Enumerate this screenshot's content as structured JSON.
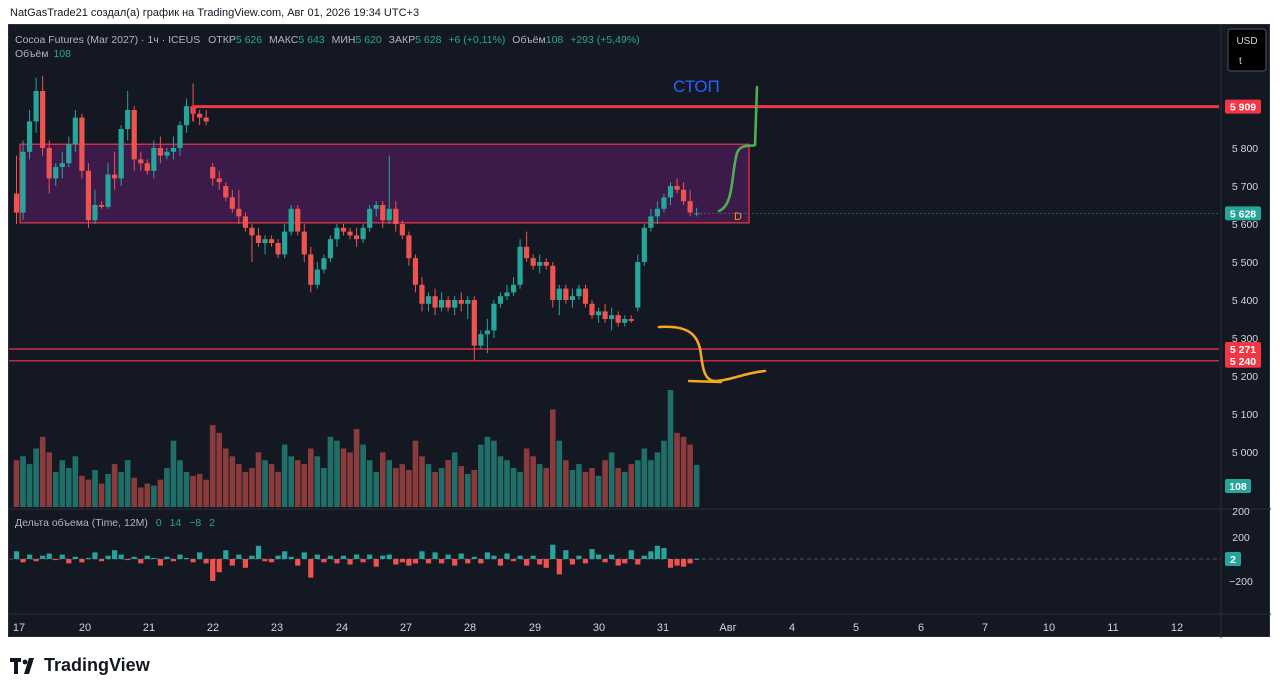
{
  "header": {
    "caption": "NatGasTrade21 создал(а) график на TradingView.com, Авг 01, 2026 19:34 UTC+3"
  },
  "legend": {
    "symbol": "Cocoa Futures (Mar 2027) · 1ч · ICEUS",
    "open_label": "ОТКР",
    "open_value": "5 626",
    "high_label": "МАКС",
    "high_value": "5 643",
    "low_label": "МИН",
    "low_value": "5 620",
    "close_label": "ЗАКР",
    "close_value": "5 628",
    "change": "+6 (+0,11%)",
    "vol_label": "Объём",
    "vol_value": "108",
    "vol_change": "+293 (+5,49%)",
    "vol_line_label": "Объём",
    "vol_line_value": "108"
  },
  "currency": {
    "label": "USD",
    "sub": "t"
  },
  "annotations": {
    "stop_text": "СТОП",
    "marker": "D"
  },
  "delta_pane": {
    "title": "Дельта объема (Time, 12M)",
    "v1": "0",
    "v2": "14",
    "v3": "−8",
    "v4": "2"
  },
  "brand": {
    "name": "TradingView"
  },
  "colors": {
    "up": "#26a69a",
    "down": "#ef5350",
    "bg": "#141823",
    "zone_fill": "#5c1f6b",
    "line_red": "#f23645"
  },
  "chart_data": {
    "type": "candlestick",
    "y_ticks": [
      5100,
      5200,
      5300,
      5400,
      5500,
      5600,
      5700,
      5800
    ],
    "y_tick_labels": [
      "5 100",
      "5 200",
      "5 300",
      "5 400",
      "5 500",
      "5 600",
      "5 700",
      "5 800"
    ],
    "volume_axis_labels": [
      "200"
    ],
    "price_labels": [
      {
        "value": 5909,
        "label": "5 909",
        "color": "#f23645"
      },
      {
        "value": 5628,
        "label": "5 628",
        "color": "#26a69a"
      },
      {
        "value": 5271,
        "label": "5 271",
        "color": "#f23645"
      },
      {
        "value": 5240,
        "label": "5 240",
        "color": "#f23645"
      },
      {
        "value": 5000,
        "label": "5 000",
        "color": "none"
      },
      {
        "value": 108,
        "label": "108",
        "color": "#26a69a"
      }
    ],
    "delta_ticks": [
      {
        "value": 200,
        "label": "200"
      },
      {
        "value": -200,
        "label": "−200"
      }
    ],
    "delta_last": {
      "value": 2,
      "label": "2"
    },
    "x_labels": [
      "17",
      "20",
      "21",
      "22",
      "23",
      "24",
      "27",
      "28",
      "29",
      "30",
      "31",
      "Авг",
      "4",
      "5",
      "6",
      "7",
      "10",
      "11",
      "12"
    ],
    "zone": {
      "top": 5810,
      "bottom": 5603
    },
    "level_lines": [
      5909,
      5271,
      5240
    ],
    "last_close": 5628,
    "candles": [
      [
        5680,
        5780,
        5600,
        5630
      ],
      [
        5630,
        5820,
        5610,
        5790
      ],
      [
        5790,
        5900,
        5770,
        5870
      ],
      [
        5870,
        5985,
        5840,
        5950
      ],
      [
        5950,
        5990,
        5780,
        5800
      ],
      [
        5800,
        5820,
        5680,
        5720
      ],
      [
        5720,
        5760,
        5700,
        5750
      ],
      [
        5750,
        5790,
        5720,
        5760
      ],
      [
        5760,
        5830,
        5750,
        5810
      ],
      [
        5810,
        5900,
        5790,
        5880
      ],
      [
        5880,
        5890,
        5720,
        5740
      ],
      [
        5740,
        5760,
        5590,
        5610
      ],
      [
        5610,
        5690,
        5600,
        5650
      ],
      [
        5650,
        5660,
        5640,
        5645
      ],
      [
        5645,
        5760,
        5640,
        5730
      ],
      [
        5730,
        5790,
        5690,
        5720
      ],
      [
        5720,
        5860,
        5700,
        5850
      ],
      [
        5850,
        5950,
        5820,
        5900
      ],
      [
        5900,
        5910,
        5740,
        5770
      ],
      [
        5770,
        5790,
        5740,
        5760
      ],
      [
        5760,
        5770,
        5730,
        5740
      ],
      [
        5740,
        5820,
        5720,
        5800
      ],
      [
        5800,
        5830,
        5760,
        5780
      ],
      [
        5780,
        5800,
        5770,
        5790
      ],
      [
        5790,
        5830,
        5770,
        5800
      ],
      [
        5800,
        5870,
        5780,
        5860
      ],
      [
        5860,
        5930,
        5840,
        5910
      ],
      [
        5910,
        5970,
        5870,
        5890
      ],
      [
        5890,
        5900,
        5860,
        5880
      ],
      [
        5880,
        5900,
        5860,
        5870
      ],
      [
        5750,
        5760,
        5700,
        5720
      ],
      [
        5720,
        5740,
        5690,
        5710
      ],
      [
        5700,
        5710,
        5660,
        5670
      ],
      [
        5670,
        5690,
        5630,
        5640
      ],
      [
        5640,
        5690,
        5600,
        5620
      ],
      [
        5620,
        5630,
        5580,
        5590
      ],
      [
        5590,
        5600,
        5500,
        5570
      ],
      [
        5570,
        5590,
        5540,
        5550
      ],
      [
        5550,
        5570,
        5520,
        5560
      ],
      [
        5560,
        5570,
        5540,
        5550
      ],
      [
        5550,
        5560,
        5510,
        5520
      ],
      [
        5520,
        5600,
        5510,
        5580
      ],
      [
        5580,
        5650,
        5570,
        5640
      ],
      [
        5640,
        5650,
        5570,
        5580
      ],
      [
        5580,
        5600,
        5500,
        5520
      ],
      [
        5520,
        5540,
        5420,
        5440
      ],
      [
        5440,
        5500,
        5430,
        5480
      ],
      [
        5480,
        5520,
        5470,
        5510
      ],
      [
        5510,
        5570,
        5500,
        5560
      ],
      [
        5560,
        5600,
        5540,
        5590
      ],
      [
        5590,
        5600,
        5570,
        5580
      ],
      [
        5580,
        5590,
        5560,
        5570
      ],
      [
        5570,
        5590,
        5540,
        5560
      ],
      [
        5560,
        5600,
        5550,
        5590
      ],
      [
        5590,
        5650,
        5580,
        5640
      ],
      [
        5640,
        5660,
        5620,
        5650
      ],
      [
        5650,
        5660,
        5590,
        5610
      ],
      [
        5610,
        5780,
        5600,
        5640
      ],
      [
        5640,
        5660,
        5580,
        5600
      ],
      [
        5600,
        5610,
        5560,
        5570
      ],
      [
        5570,
        5580,
        5490,
        5510
      ],
      [
        5510,
        5520,
        5420,
        5440
      ],
      [
        5440,
        5460,
        5370,
        5390
      ],
      [
        5390,
        5420,
        5370,
        5410
      ],
      [
        5410,
        5430,
        5360,
        5380
      ],
      [
        5380,
        5420,
        5370,
        5400
      ],
      [
        5400,
        5410,
        5370,
        5380
      ],
      [
        5380,
        5410,
        5360,
        5400
      ],
      [
        5400,
        5420,
        5370,
        5390
      ],
      [
        5390,
        5410,
        5350,
        5400
      ],
      [
        5400,
        5410,
        5240,
        5280
      ],
      [
        5280,
        5320,
        5270,
        5310
      ],
      [
        5310,
        5350,
        5260,
        5320
      ],
      [
        5320,
        5400,
        5300,
        5390
      ],
      [
        5390,
        5420,
        5380,
        5410
      ],
      [
        5410,
        5440,
        5400,
        5420
      ],
      [
        5420,
        5460,
        5410,
        5440
      ],
      [
        5440,
        5560,
        5430,
        5540
      ],
      [
        5540,
        5580,
        5500,
        5510
      ],
      [
        5510,
        5520,
        5480,
        5490
      ],
      [
        5490,
        5520,
        5470,
        5500
      ],
      [
        5500,
        5510,
        5480,
        5490
      ],
      [
        5490,
        5500,
        5380,
        5400
      ],
      [
        5400,
        5440,
        5360,
        5430
      ],
      [
        5430,
        5440,
        5390,
        5400
      ],
      [
        5400,
        5430,
        5380,
        5410
      ],
      [
        5410,
        5440,
        5400,
        5430
      ],
      [
        5430,
        5440,
        5380,
        5390
      ],
      [
        5390,
        5400,
        5350,
        5360
      ],
      [
        5360,
        5380,
        5340,
        5370
      ],
      [
        5370,
        5390,
        5340,
        5350
      ],
      [
        5350,
        5380,
        5320,
        5360
      ],
      [
        5360,
        5370,
        5330,
        5340
      ],
      [
        5340,
        5360,
        5330,
        5350
      ],
      [
        5350,
        5360,
        5340,
        5345
      ],
      [
        5380,
        5520,
        5370,
        5500
      ],
      [
        5500,
        5600,
        5490,
        5590
      ],
      [
        5590,
        5640,
        5580,
        5620
      ],
      [
        5620,
        5660,
        5600,
        5640
      ],
      [
        5640,
        5680,
        5630,
        5670
      ],
      [
        5670,
        5710,
        5650,
        5700
      ],
      [
        5700,
        5720,
        5680,
        5690
      ],
      [
        5690,
        5710,
        5650,
        5660
      ],
      [
        5660,
        5690,
        5620,
        5630
      ],
      [
        5626,
        5643,
        5620,
        5628
      ]
    ],
    "volumes": [
      120,
      130,
      110,
      150,
      180,
      140,
      90,
      120,
      100,
      130,
      80,
      70,
      95,
      60,
      85,
      110,
      90,
      120,
      75,
      50,
      60,
      55,
      70,
      100,
      170,
      120,
      90,
      80,
      85,
      70,
      210,
      190,
      150,
      130,
      110,
      90,
      100,
      140,
      120,
      110,
      90,
      160,
      130,
      120,
      110,
      150,
      130,
      100,
      180,
      170,
      150,
      140,
      200,
      160,
      120,
      90,
      140,
      120,
      100,
      110,
      95,
      170,
      130,
      110,
      90,
      100,
      120,
      140,
      105,
      85,
      95,
      160,
      180,
      170,
      130,
      120,
      100,
      90,
      150,
      130,
      110,
      100,
      250,
      170,
      120,
      95,
      110,
      90,
      100,
      80,
      120,
      140,
      100,
      90,
      110,
      120,
      150,
      120,
      140,
      170,
      300,
      190,
      180,
      160,
      108
    ],
    "deltas": [
      70,
      -30,
      40,
      -20,
      30,
      50,
      -10,
      40,
      -40,
      20,
      -30,
      10,
      60,
      -20,
      30,
      80,
      40,
      -10,
      20,
      -40,
      30,
      10,
      -60,
      20,
      -20,
      40,
      10,
      -30,
      60,
      -40,
      -200,
      -120,
      80,
      -60,
      40,
      -80,
      30,
      120,
      -20,
      -30,
      30,
      70,
      20,
      -60,
      60,
      -170,
      40,
      -30,
      30,
      -40,
      30,
      -50,
      40,
      -30,
      40,
      -70,
      30,
      40,
      -50,
      -30,
      -60,
      -40,
      70,
      -40,
      60,
      -40,
      40,
      -60,
      50,
      -40,
      20,
      -40,
      60,
      30,
      -60,
      50,
      -20,
      30,
      -60,
      30,
      -50,
      -80,
      130,
      -140,
      80,
      -50,
      30,
      -40,
      90,
      40,
      -30,
      40,
      -60,
      -40,
      80,
      -50,
      30,
      70,
      120,
      100,
      -80,
      -60,
      -70,
      -40,
      2
    ]
  }
}
